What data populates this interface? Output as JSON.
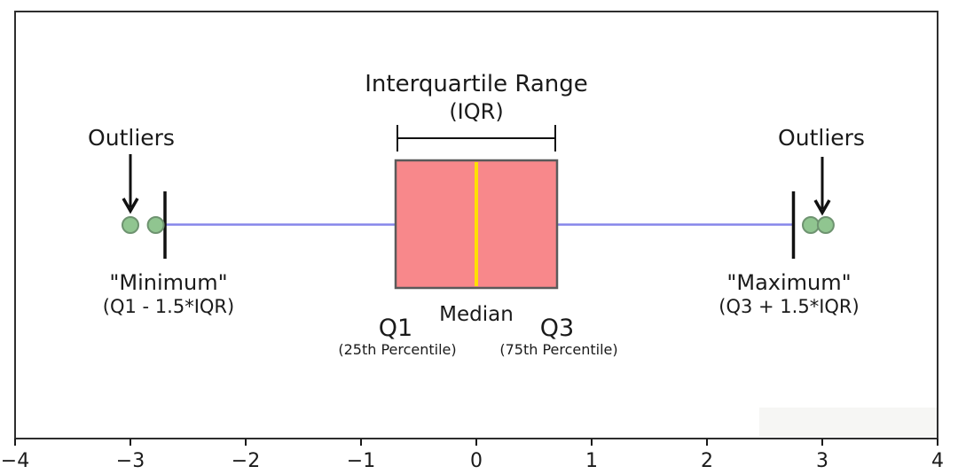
{
  "figure": {
    "background": "#ffffff",
    "border_color": "#2e2e2e"
  },
  "chart_data": {
    "type": "boxplot",
    "orientation": "horizontal",
    "title": "Interquartile Range",
    "subtitle": "(IQR)",
    "xlim": [
      -4,
      4
    ],
    "x_ticks": [
      -4,
      -3,
      -2,
      -1,
      0,
      1,
      2,
      3,
      4
    ],
    "x_tick_labels": [
      "−4",
      "−3",
      "−2",
      "−1",
      "0",
      "1",
      "2",
      "3",
      "4"
    ],
    "grid": false,
    "box": {
      "q1": -0.7,
      "median": 0,
      "q3": 0.7
    },
    "whiskers": {
      "min": -2.7,
      "max": 2.75
    },
    "outliers": {
      "left": [
        -3.0,
        -2.78
      ],
      "right": [
        2.9,
        3.03
      ]
    },
    "annotations": {
      "outliers_left_label": "Outliers",
      "outliers_right_label": "Outliers",
      "arrow_left_x": -3.0,
      "arrow_right_x": 3.0,
      "minimum_title": "\"Minimum\"",
      "minimum_formula": "(Q1 - 1.5*IQR)",
      "maximum_title": "\"Maximum\"",
      "maximum_formula": "(Q3 + 1.5*IQR)",
      "q1_label": "Q1",
      "q1_sub": "(25th Percentile)",
      "median_label": "Median",
      "q3_label": "Q3",
      "q3_sub": "(75th Percentile)"
    },
    "colors": {
      "box_fill": "#f8888b",
      "box_edge": "#5a5a5a",
      "median_line": "#ffdf00",
      "whisker": "#8585ea",
      "cap": "#111111",
      "outlier_fill": "#90c590",
      "outlier_edge": "#6e9370",
      "annotation": "#111111"
    }
  }
}
